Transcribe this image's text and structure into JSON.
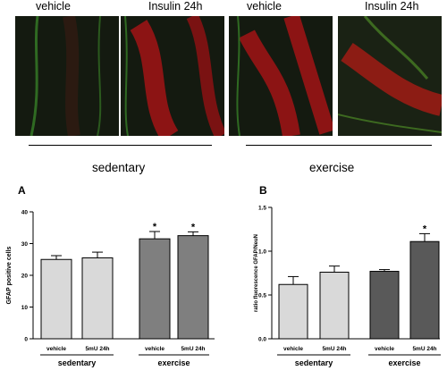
{
  "micrographs": {
    "labels": [
      "vehicle",
      "Insulin 24h",
      "vehicle",
      "Insulin 24h"
    ],
    "groups": [
      "sedentary",
      "exercise"
    ]
  },
  "chart_data": [
    {
      "type": "bar",
      "panel_label": "A",
      "ylabel": "GFAP positive cells",
      "ylim": [
        0,
        40
      ],
      "yticks": [
        "0",
        "10",
        "20",
        "30",
        "40"
      ],
      "categories": [
        "vehicle",
        "5mU 24h",
        "vehicle",
        "5mU 24h"
      ],
      "groups": [
        "sedentary",
        "exercise"
      ],
      "values": [
        25,
        25.5,
        31.5,
        32.5
      ],
      "errors": [
        1.2,
        1.8,
        2.3,
        1.2
      ],
      "significance": [
        "",
        "",
        "*",
        "*"
      ],
      "bar_colors": [
        "#d9d9d9",
        "#d9d9d9",
        "#7f7f7f",
        "#7f7f7f"
      ],
      "grid": false
    },
    {
      "type": "bar",
      "panel_label": "B",
      "ylabel": "ratio fluorescence GFAP/NeuN",
      "ylim": [
        0.0,
        1.5
      ],
      "yticks": [
        "0.0",
        "0.5",
        "1.0",
        "1.5"
      ],
      "categories": [
        "vehicle",
        "5mU 24h",
        "vehicle",
        "5mU 24h"
      ],
      "groups": [
        "sedentary",
        "exercise"
      ],
      "values": [
        0.62,
        0.76,
        0.77,
        1.11
      ],
      "errors": [
        0.09,
        0.07,
        0.02,
        0.09
      ],
      "significance": [
        "",
        "",
        "",
        "*"
      ],
      "bar_colors": [
        "#d9d9d9",
        "#d9d9d9",
        "#595959",
        "#595959"
      ],
      "grid": false
    }
  ]
}
